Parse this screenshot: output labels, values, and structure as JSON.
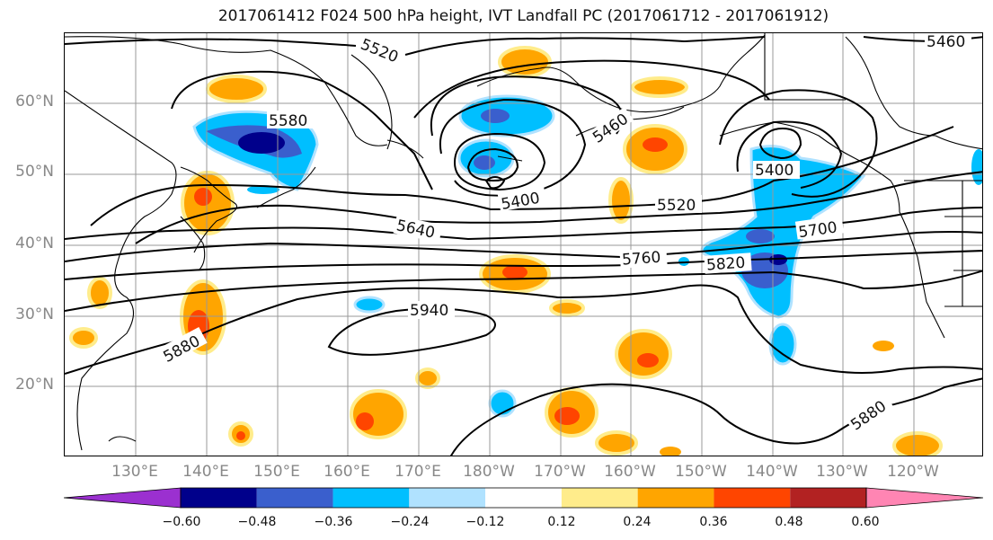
{
  "title": "2017061412 F024 500 hPa height, IVT Landfall PC (2017061712 - 2017061912)",
  "lat_labels": [
    "60°N",
    "50°N",
    "40°N",
    "30°N",
    "20°N"
  ],
  "lon_labels": [
    "130°E",
    "140°E",
    "150°E",
    "160°E",
    "170°E",
    "180°W",
    "170°W",
    "160°W",
    "150°W",
    "140°W",
    "130°W",
    "120°W"
  ],
  "contour_labels": [
    "5520",
    "5460",
    "5580",
    "5460",
    "5400",
    "5400",
    "5520",
    "5640",
    "5700",
    "5760",
    "5820",
    "5940",
    "5880",
    "5880"
  ],
  "colorbar": {
    "ticks": [
      "−0.60",
      "−0.48",
      "−0.36",
      "−0.24",
      "−0.12",
      "0.12",
      "0.24",
      "0.36",
      "0.48",
      "0.60"
    ],
    "colors": [
      "#9b30d0",
      "#00008b",
      "#3a5fcd",
      "#00bfff",
      "#b0e2ff",
      "#ffffff",
      "#ffec8b",
      "#ffa500",
      "#ff4500",
      "#b22222",
      "#ff85b3"
    ]
  },
  "colors": {
    "contour": "#000000",
    "grid": "#999999",
    "coast": "#000000"
  }
}
